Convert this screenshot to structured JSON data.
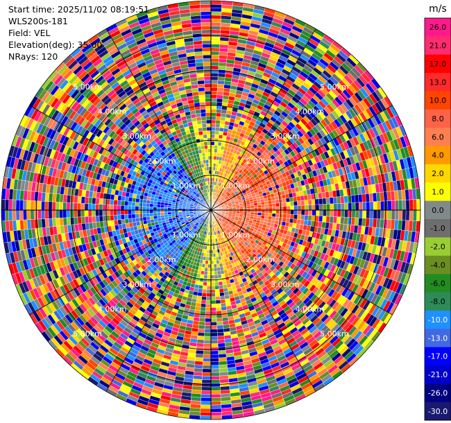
{
  "header": {
    "start_time": "Start time: 2025/11/02 08:19:51",
    "instrument": "WLS200s-181",
    "field": "Field: VEL",
    "elevation": "Elevation(deg): 35.00",
    "nrays": "NRays: 120"
  },
  "chart_data": {
    "type": "polar-ppi",
    "field": "VEL",
    "units": "m/s",
    "n_rays": 120,
    "elevation_deg": 35.0,
    "max_range_km": 6.0,
    "ring_labels": [
      "1.00km",
      "2.00km",
      "3.00km",
      "4.00km",
      "5.00km"
    ],
    "colorbar": {
      "title": "m/s",
      "ticks": [
        "26.0",
        "21.0",
        "17.0",
        "13.0",
        "10.0",
        "8.0",
        "6.0",
        "4.0",
        "2.0",
        "1.0",
        "0.0",
        "-1.0",
        "-2.0",
        "-4.0",
        "-6.0",
        "-8.0",
        "-10.0",
        "-13.0",
        "-17.0",
        "-21.0",
        "-26.0",
        "-30.0"
      ],
      "colors": [
        "#ff1a8c",
        "#ff2d6f",
        "#ff0000",
        "#ff2a2a",
        "#ff4500",
        "#ff6347",
        "#ff7f50",
        "#ff9900",
        "#ffd700",
        "#ffff00",
        "#808a8a",
        "#6e6e6e",
        "#9acd32",
        "#6b8e23",
        "#228b22",
        "#2e8b57",
        "#1e90ff",
        "#4169e1",
        "#0000ff",
        "#0000cd",
        "#000080",
        "#191970"
      ]
    },
    "clear_air_field": {
      "range_km": [
        0,
        3.0
      ],
      "toward_left_mps": -8.0,
      "toward_right_mps": 8.0
    }
  }
}
